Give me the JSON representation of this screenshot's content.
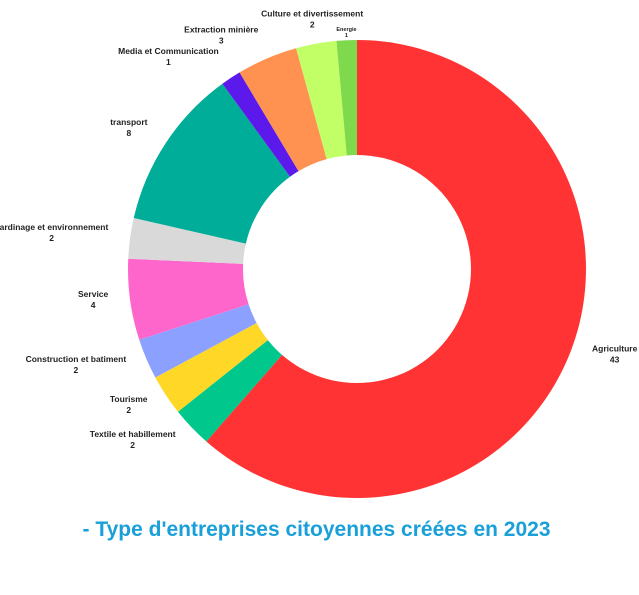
{
  "caption": "- Type d'entreprises citoyennes créées en 2023",
  "chart_data": {
    "type": "pie",
    "variant": "donut",
    "title": "",
    "start_angle_deg": 0,
    "direction": "clockwise",
    "grid": false,
    "legend": "none",
    "slices": [
      {
        "label": "Agriculture",
        "value": 43,
        "color": "#ff3333"
      },
      {
        "label": "Textile et habillement",
        "value": 2,
        "color": "#00c88c"
      },
      {
        "label": "Tourisme",
        "value": 2,
        "color": "#ffd726"
      },
      {
        "label": "Construction et batiment",
        "value": 2,
        "color": "#8ca0ff"
      },
      {
        "label": "Service",
        "value": 4,
        "color": "#ff66cc"
      },
      {
        "label": "Jardinage et environnement",
        "value": 2,
        "color": "#d9d9d9"
      },
      {
        "label": "transport",
        "value": 8,
        "color": "#00ad98"
      },
      {
        "label": "Media et Communication",
        "value": 1,
        "color": "#5b1aeb"
      },
      {
        "label": "Extraction minière",
        "value": 3,
        "color": "#ff9250"
      },
      {
        "label": "Culture et divertissement",
        "value": 2,
        "color": "#c2ff66"
      },
      {
        "label": "Energie",
        "value": 1,
        "color": "#7fd94d"
      }
    ]
  }
}
